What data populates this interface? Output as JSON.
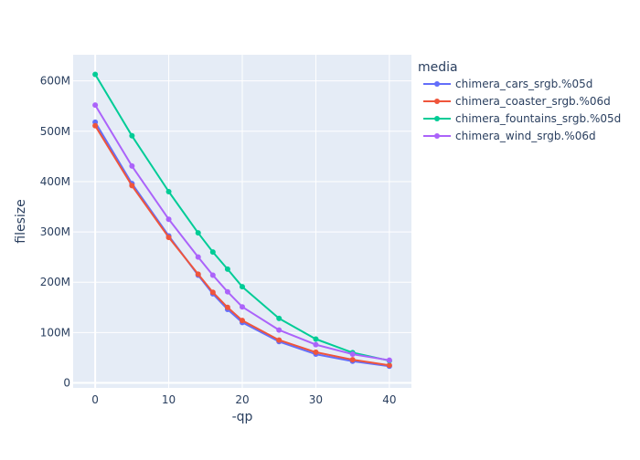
{
  "chart_data": {
    "type": "line",
    "xlabel": "-qp",
    "ylabel": "filesize",
    "xlim": [
      -3,
      43
    ],
    "ylim": [
      -10000000,
      652000000
    ],
    "grid": true,
    "x_ticks": [
      0,
      10,
      20,
      30,
      40
    ],
    "x_tick_labels": [
      "0",
      "10",
      "20",
      "30",
      "40"
    ],
    "y_ticks": [
      0,
      100000000,
      200000000,
      300000000,
      400000000,
      500000000,
      600000000
    ],
    "y_tick_labels": [
      "0",
      "100M",
      "200M",
      "300M",
      "400M",
      "500M",
      "600M"
    ],
    "legend": {
      "title": "media",
      "placement": "right"
    },
    "x": [
      0,
      5,
      10,
      14,
      16,
      18,
      20,
      25,
      30,
      35,
      40
    ],
    "series": [
      {
        "name": "chimera_cars_srgb.%05d",
        "color": "#636efa",
        "values": [
          518000000,
          396000000,
          292000000,
          214000000,
          177000000,
          146000000,
          120000000,
          82000000,
          57000000,
          43000000,
          33000000
        ]
      },
      {
        "name": "chimera_coaster_srgb.%06d",
        "color": "#ef553b",
        "values": [
          511000000,
          392000000,
          289000000,
          216000000,
          180000000,
          150000000,
          124000000,
          85000000,
          61000000,
          46000000,
          35000000
        ]
      },
      {
        "name": "chimera_fountains_srgb.%05d",
        "color": "#00cc96",
        "values": [
          613000000,
          491000000,
          380000000,
          298000000,
          260000000,
          226000000,
          191000000,
          128000000,
          87000000,
          60000000,
          44000000
        ]
      },
      {
        "name": "chimera_wind_srgb.%06d",
        "color": "#ab63fa",
        "values": [
          552000000,
          431000000,
          325000000,
          250000000,
          214000000,
          181000000,
          151000000,
          105000000,
          76000000,
          57000000,
          45000000
        ]
      }
    ]
  }
}
